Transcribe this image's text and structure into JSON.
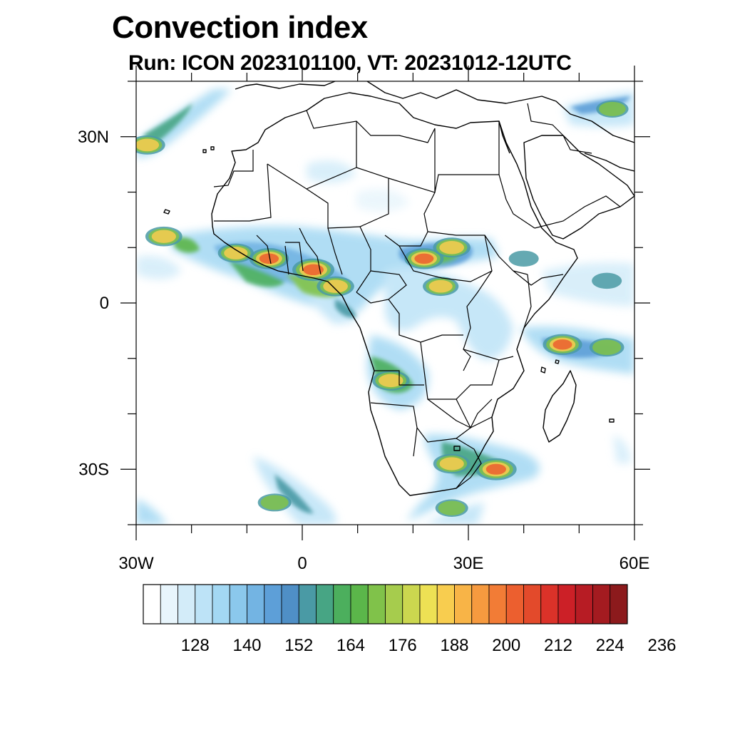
{
  "title": "Convection index",
  "subtitle": "Run: ICON 2023101100,  VT: 20231012-12UTC",
  "map": {
    "lon_range": [
      -30,
      60
    ],
    "lat_range": [
      -40,
      40
    ],
    "lat_ticks": [
      {
        "lat": 30,
        "label": "30N"
      },
      {
        "lat": 0,
        "label": "0"
      },
      {
        "lat": -30,
        "label": "30S"
      }
    ],
    "lon_ticks": [
      {
        "lon": -30,
        "label": "30W"
      },
      {
        "lon": 0,
        "label": "0"
      },
      {
        "lon": 30,
        "label": "30E"
      },
      {
        "lon": 60,
        "label": "60E"
      }
    ]
  },
  "colorbar": {
    "labels": [
      "128",
      "140",
      "152",
      "164",
      "176",
      "188",
      "200",
      "212",
      "224",
      "236"
    ],
    "colors": [
      "#ffffff",
      "#e8f5fc",
      "#d3ecf9",
      "#bde3f7",
      "#a3d8f3",
      "#8bc8ec",
      "#73b4e3",
      "#5d9fd8",
      "#4f8fc6",
      "#4a9aa5",
      "#47a584",
      "#4caf5d",
      "#5bb64a",
      "#80c24a",
      "#a6cc4d",
      "#cbd74f",
      "#ede154",
      "#f8cd4f",
      "#f8b447",
      "#f69a3f",
      "#f27c36",
      "#ec5f2f",
      "#e34a2b",
      "#db3229",
      "#cc2027",
      "#b71c24",
      "#a41b20",
      "#8c1a1c"
    ]
  },
  "hotspots": [
    {
      "lon": -6,
      "lat": 8,
      "level": 0.72
    },
    {
      "lon": 2,
      "lat": 6,
      "level": 0.82
    },
    {
      "lon": 6,
      "lat": 3,
      "level": 0.62
    },
    {
      "lon": -12,
      "lat": 9,
      "level": 0.55
    },
    {
      "lon": -25,
      "lat": 12,
      "level": 0.6
    },
    {
      "lon": 22,
      "lat": 8,
      "level": 0.7
    },
    {
      "lon": 27,
      "lat": 10,
      "level": 0.62
    },
    {
      "lon": 25,
      "lat": 3,
      "level": 0.55
    },
    {
      "lon": 16,
      "lat": -14,
      "level": 0.62
    },
    {
      "lon": 35,
      "lat": -30,
      "level": 0.78
    },
    {
      "lon": 27,
      "lat": -29,
      "level": 0.6
    },
    {
      "lon": 47,
      "lat": -7.5,
      "level": 0.7
    },
    {
      "lon": 55,
      "lat": -8,
      "level": 0.5
    },
    {
      "lon": -28,
      "lat": 28.5,
      "level": 0.55
    },
    {
      "lon": -5,
      "lat": -36,
      "level": 0.45
    },
    {
      "lon": 27,
      "lat": -37,
      "level": 0.42
    },
    {
      "lon": 56,
      "lat": 35,
      "level": 0.4
    },
    {
      "lon": 4,
      "lat": 24,
      "level": 0.22
    },
    {
      "lon": 14,
      "lat": 18,
      "level": 0.2
    },
    {
      "lon": 40,
      "lat": 8,
      "level": 0.3
    },
    {
      "lon": 55,
      "lat": 4,
      "level": 0.3
    }
  ]
}
